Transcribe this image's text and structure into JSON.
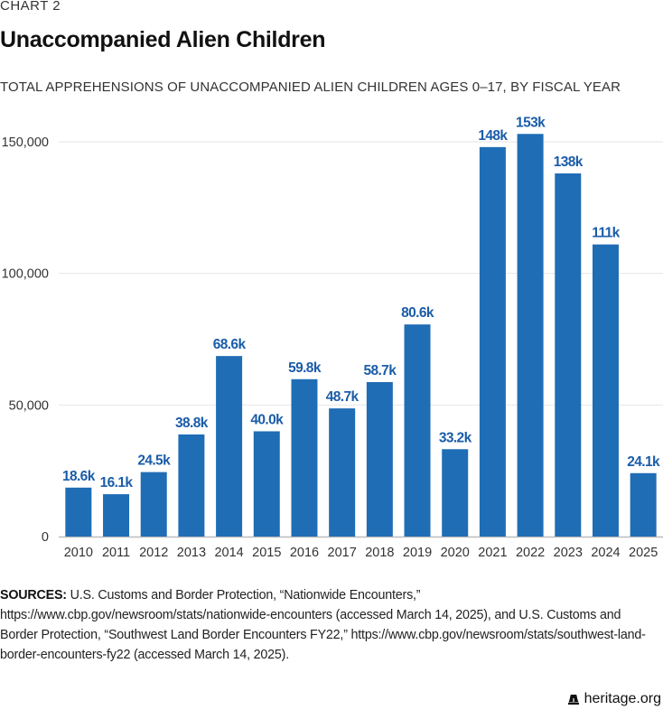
{
  "header": {
    "kicker": "CHART 2",
    "title": "Unaccompanied Alien Children",
    "subtitle": "TOTAL APPREHENSIONS OF UNACCOMPANIED ALIEN CHILDREN AGES 0–17, BY FISCAL YEAR"
  },
  "chart_data": {
    "type": "bar",
    "title": "Unaccompanied Alien Children",
    "subtitle": "TOTAL APPREHENSIONS OF UNACCOMPANIED ALIEN CHILDREN AGES 0–17, BY FISCAL YEAR",
    "xlabel": "",
    "ylabel": "",
    "categories": [
      "2010",
      "2011",
      "2012",
      "2013",
      "2014",
      "2015",
      "2016",
      "2017",
      "2018",
      "2019",
      "2020",
      "2021",
      "2022",
      "2023",
      "2024",
      "2025"
    ],
    "values": [
      18600,
      16100,
      24500,
      38800,
      68600,
      40000,
      59800,
      48700,
      58700,
      80600,
      33200,
      148000,
      153000,
      138000,
      111000,
      24100
    ],
    "data_labels": [
      "18.6k",
      "16.1k",
      "24.5k",
      "38.8k",
      "68.6k",
      "40.0k",
      "59.8k",
      "48.7k",
      "58.7k",
      "80.6k",
      "33.2k",
      "148k",
      "153k",
      "138k",
      "111k",
      "24.1k"
    ],
    "ylim": [
      0,
      150000
    ],
    "yticks": [
      0,
      50000,
      100000,
      150000
    ],
    "ytick_labels": [
      "0",
      "50,000",
      "100,000",
      "150,000"
    ],
    "grid": true,
    "legend": "none",
    "colors": {
      "bar": "#1f6db5",
      "label": "#1a5ca8",
      "grid": "#e6e6e6",
      "axis": "#bdbdbd"
    }
  },
  "sources": {
    "label": "SOURCES:",
    "text": " U.S. Customs and Border Protection, “Nationwide Encounters,” https://www.cbp.gov/newsroom/stats/nationwide-encounters (accessed March 14, 2025), and U.S. Customs and Border Protection, “Southwest Land Border Encounters FY22,” https://www.cbp.gov/newsroom/stats/southwest-land-border-encounters-fy22 (accessed March 14, 2025)."
  },
  "footer": {
    "icon": "liberty-bell-icon",
    "site": "heritage.org"
  }
}
